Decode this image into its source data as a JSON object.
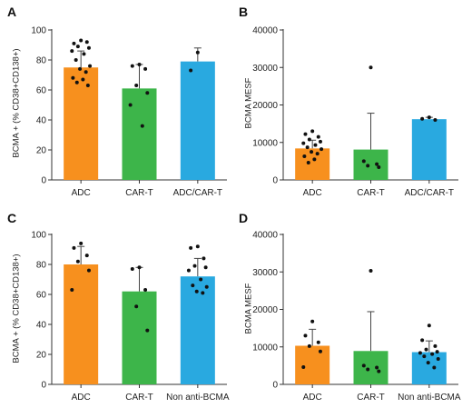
{
  "panels": [
    {
      "id": "A",
      "label": "A",
      "ylabel": "BCMA + (% CD38+CD138+)"
    },
    {
      "id": "B",
      "label": "B",
      "ylabel": "BCMA MESF"
    },
    {
      "id": "C",
      "label": "C",
      "ylabel": "BCMA + (% CD38+CD138+)"
    },
    {
      "id": "D",
      "label": "D",
      "ylabel": "BCMA MESF"
    }
  ],
  "colors": {
    "orange": "#f7901e",
    "green": "#3db54a",
    "blue": "#29a9e0",
    "axis": "#333333",
    "dot": "#111111"
  },
  "chart_data": [
    {
      "panel": "A",
      "type": "bar",
      "title": "",
      "ylabel": "BCMA + (% CD38+CD138+)",
      "categories": [
        "ADC",
        "CAR-T",
        "ADC/CAR-T"
      ],
      "colors": [
        "#f7901e",
        "#3db54a",
        "#29a9e0"
      ],
      "values": [
        75,
        61,
        79
      ],
      "error_upper": [
        86,
        77,
        88
      ],
      "ylim": [
        0,
        100
      ],
      "yticks": [
        0,
        20,
        40,
        60,
        80,
        100
      ],
      "points": [
        [
          93,
          91,
          92,
          89,
          88,
          86,
          84,
          80,
          76,
          74,
          72,
          68,
          67,
          65,
          63
        ],
        [
          77,
          76,
          74,
          63,
          58,
          50,
          36
        ],
        [
          85,
          73
        ]
      ]
    },
    {
      "panel": "B",
      "type": "bar",
      "title": "",
      "ylabel": "BCMA MESF",
      "categories": [
        "ADC",
        "CAR-T",
        "ADC/CAR-T"
      ],
      "colors": [
        "#f7901e",
        "#3db54a",
        "#29a9e0"
      ],
      "values": [
        8400,
        8100,
        16200
      ],
      "error_upper": [
        10600,
        17800,
        16700
      ],
      "ylim": [
        0,
        40000
      ],
      "yticks": [
        0,
        10000,
        20000,
        30000,
        40000
      ],
      "points": [
        [
          13000,
          12200,
          11500,
          10800,
          10200,
          9800,
          9300,
          8700,
          8200,
          7500,
          7000,
          6300,
          5500,
          4600
        ],
        [
          30000,
          5000,
          4200,
          3800,
          3400
        ],
        [
          16700,
          16300,
          16000
        ]
      ]
    },
    {
      "panel": "C",
      "type": "bar",
      "title": "",
      "ylabel": "BCMA + (% CD38+CD138+)",
      "categories": [
        "ADC",
        "CAR-T",
        "Non anti-BCMA"
      ],
      "colors": [
        "#f7901e",
        "#3db54a",
        "#29a9e0"
      ],
      "values": [
        80,
        62,
        72
      ],
      "error_upper": [
        92,
        78,
        84
      ],
      "ylim": [
        0,
        100
      ],
      "yticks": [
        0,
        20,
        40,
        60,
        80,
        100
      ],
      "points": [
        [
          94,
          91,
          86,
          82,
          76,
          63
        ],
        [
          78,
          77,
          63,
          52,
          36
        ],
        [
          92,
          91,
          84,
          79,
          78,
          76,
          70,
          66,
          65,
          62,
          61
        ]
      ]
    },
    {
      "panel": "D",
      "type": "bar",
      "title": "",
      "ylabel": "BCMA MESF",
      "categories": [
        "ADC",
        "CAR-T",
        "Non anti-BCMA"
      ],
      "colors": [
        "#f7901e",
        "#3db54a",
        "#29a9e0"
      ],
      "values": [
        10300,
        8900,
        8600
      ],
      "error_upper": [
        14700,
        19400,
        11600
      ],
      "ylim": [
        0,
        40000
      ],
      "yticks": [
        0,
        10000,
        20000,
        30000,
        40000
      ],
      "points": [
        [
          16800,
          13000,
          11200,
          10200,
          8800,
          4600
        ],
        [
          30300,
          5000,
          4500,
          4000,
          3500
        ],
        [
          15700,
          11800,
          10200,
          9300,
          8700,
          8400,
          8100,
          7500,
          6800,
          5800,
          4500
        ]
      ]
    }
  ]
}
